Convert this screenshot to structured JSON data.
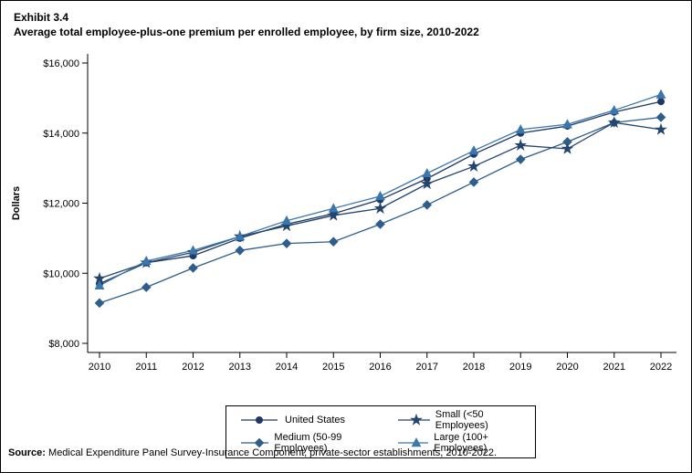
{
  "page": {
    "exhibit_label": "Exhibit 3.4",
    "title": "Average total employee-plus-one premium per enrolled employee, by firm size, 2010-2022",
    "source_prefix": "Source:",
    "source_text": " Medical Expenditure Panel Survey-Insurance Component, private-sector establishments, 2010-2022."
  },
  "chart_data": {
    "type": "line",
    "title": "Average total employee-plus-one premium per enrolled employee, by firm size, 2010-2022",
    "xlabel": "",
    "ylabel": "Dollars",
    "x": [
      2010,
      2011,
      2012,
      2013,
      2014,
      2015,
      2016,
      2017,
      2018,
      2019,
      2020,
      2021,
      2022
    ],
    "x_tick_labels": [
      "2010",
      "2011",
      "2012",
      "2013",
      "2014",
      "2015",
      "2016",
      "2017",
      "2018",
      "2019",
      "2020",
      "2021",
      "2022"
    ],
    "ylim": [
      8000,
      16000
    ],
    "ytick_values": [
      8000,
      10000,
      12000,
      14000,
      16000
    ],
    "ytick_labels": [
      "$8,000",
      "$10,000",
      "$12,000",
      "$14,000",
      "$16,000"
    ],
    "grid": false,
    "legend_position": "bottom",
    "legend_display_order": [
      "United States",
      "Small (<50 Employees)",
      "Medium (50-99 Employees)",
      "Large (100+ Employees)"
    ],
    "series": [
      {
        "name": "United States",
        "marker": "circle",
        "color": "#1f3864",
        "values": [
          9700,
          10300,
          10500,
          11000,
          11400,
          11700,
          12100,
          12700,
          13400,
          14000,
          14200,
          14600,
          14900
        ]
      },
      {
        "name": "Medium (50-99 Employees)",
        "marker": "diamond",
        "color": "#2e5e8c",
        "values": [
          9150,
          9600,
          10150,
          10650,
          10850,
          10900,
          11400,
          11950,
          12600,
          13250,
          13750,
          14300,
          14450
        ]
      },
      {
        "name": "Small (<50 Employees)",
        "marker": "star",
        "color": "#24456e",
        "values": [
          9850,
          10300,
          10600,
          11050,
          11350,
          11650,
          11850,
          12550,
          13050,
          13650,
          13550,
          14300,
          14100
        ]
      },
      {
        "name": "Large (100+ Employees)",
        "marker": "triangle",
        "color": "#3b76ac",
        "values": [
          9650,
          10350,
          10650,
          11050,
          11500,
          11850,
          12200,
          12850,
          13500,
          14100,
          14250,
          14650,
          15100
        ]
      }
    ]
  }
}
